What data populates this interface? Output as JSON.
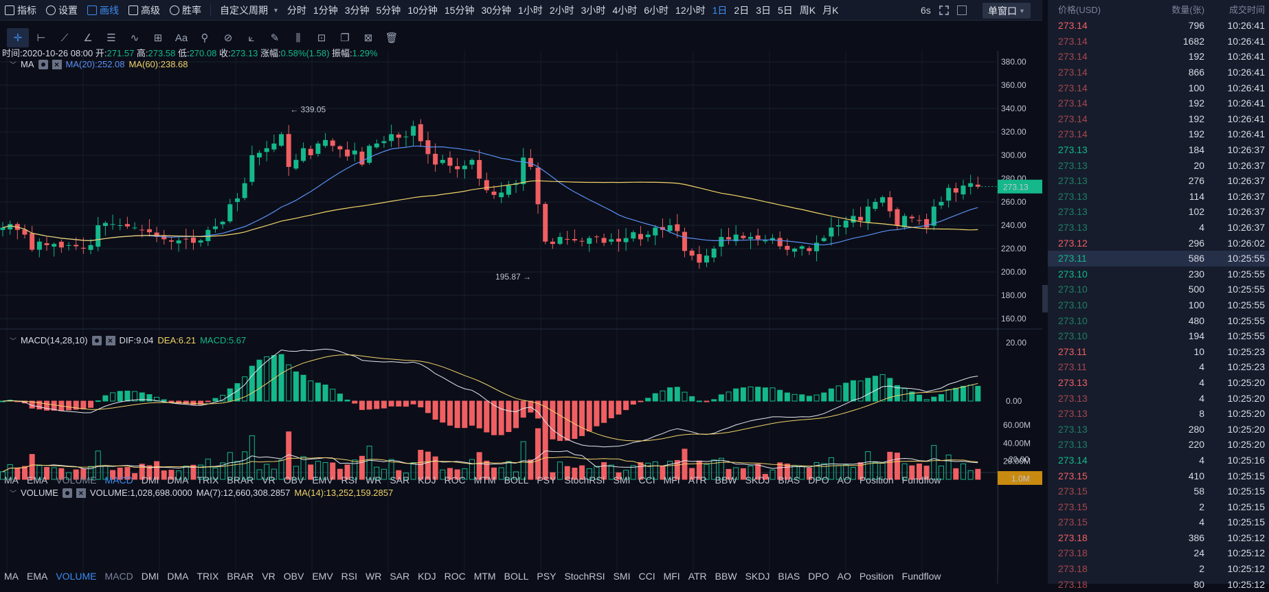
{
  "toolbar": {
    "items": [
      {
        "label": "指标",
        "icon": "indicator-icon"
      },
      {
        "label": "设置",
        "icon": "settings-icon"
      },
      {
        "label": "画线",
        "icon": "draw-line-icon",
        "active": true
      },
      {
        "label": "高级",
        "icon": "advanced-icon"
      },
      {
        "label": "胜率",
        "icon": "win-rate-icon"
      }
    ],
    "custom_period": "自定义周期",
    "periods": [
      "分时",
      "1分钟",
      "3分钟",
      "5分钟",
      "10分钟",
      "15分钟",
      "30分钟",
      "1小时",
      "2小时",
      "3小时",
      "4小时",
      "6小时",
      "12小时",
      "1日",
      "2日",
      "3日",
      "5日",
      "周K",
      "月K"
    ],
    "active_period": "1日",
    "refresh": "6s",
    "window_select": "单窗口"
  },
  "ohlc": {
    "time_label": "时间:",
    "time": "2020-10-26 08:00",
    "open_label": "开:",
    "open": "271.57",
    "high_label": "高:",
    "high": "273.58",
    "low_label": "低:",
    "low": "270.08",
    "close_label": "收:",
    "close": "273.13",
    "change_label": "涨幅:",
    "change": "0.58%(1.58)",
    "amplitude_label": "振幅:",
    "amplitude": "1.29%"
  },
  "ma": {
    "name": "MA",
    "ma20": "MA(20):252.08",
    "ma60": "MA(60):238.68"
  },
  "macd": {
    "name": "MACD(14,28,10)",
    "dif": "DIF:9.04",
    "dea": "DEA:6.21",
    "macd": "MACD:5.67"
  },
  "volume": {
    "name": "VOLUME",
    "value": "VOLUME:1,028,698.0000",
    "ma7": "MA(7):12,660,308.2857",
    "ma14": "MA(14):13,252,159.2857"
  },
  "indicator_tabs": [
    "MA",
    "EMA",
    "VOLUME",
    "MACD",
    "DMI",
    "DMA",
    "TRIX",
    "BRAR",
    "VR",
    "OBV",
    "EMV",
    "RSI",
    "WR",
    "SAR",
    "KDJ",
    "ROC",
    "MTM",
    "BOLL",
    "PSY",
    "StochRSI",
    "SMI",
    "CCI",
    "MFI",
    "ATR",
    "BBW",
    "SKDJ",
    "BIAS",
    "DPO",
    "AO",
    "Position",
    "Fundflow"
  ],
  "price_axis": [
    "380.00",
    "360.00",
    "340.00",
    "320.00",
    "300.00",
    "280.00",
    "260.00",
    "240.00",
    "220.00",
    "200.00",
    "180.00",
    "160.00"
  ],
  "macd_axis": [
    "20.00",
    "0.00",
    "-20.00"
  ],
  "volume_axis": [
    "60.00M",
    "40.00M",
    "20.00M"
  ],
  "current_price": "273.13",
  "current_volume": "1.0M",
  "high_marker": "← 339.05",
  "low_marker": "195.87 →",
  "chart_data": {
    "type": "candlestick",
    "title": "",
    "ylim": [
      160,
      380
    ],
    "annotations": [
      {
        "label": "339.05",
        "value": 339.05
      },
      {
        "label": "195.87",
        "value": 195.87
      }
    ],
    "closes": [
      238,
      241,
      236,
      232,
      219,
      226,
      223,
      224,
      221,
      223,
      222,
      220,
      223,
      240,
      242,
      241,
      240,
      239,
      238,
      236,
      234,
      230,
      228,
      226,
      227,
      228,
      225,
      227,
      236,
      239,
      243,
      258,
      263,
      276,
      300,
      302,
      306,
      310,
      318,
      290,
      296,
      306,
      300,
      310,
      313,
      308,
      305,
      299,
      304,
      292,
      308,
      310,
      312,
      318,
      315,
      316,
      325,
      312,
      301,
      292,
      296,
      291,
      288,
      291,
      296,
      280,
      270,
      266,
      268,
      274,
      276,
      298,
      290,
      258,
      226,
      224,
      230,
      228,
      227,
      226,
      229,
      230,
      225,
      228,
      226,
      229,
      234,
      228,
      232,
      238,
      236,
      240,
      235,
      218,
      214,
      208,
      214,
      220,
      230,
      228,
      232,
      229,
      230,
      228,
      227,
      229,
      222,
      219,
      220,
      222,
      218,
      225,
      229,
      238,
      240,
      244,
      248,
      244,
      256,
      260,
      264,
      252,
      240,
      248,
      246,
      244,
      238,
      256,
      260,
      272,
      268,
      274,
      276,
      273
    ]
  },
  "trades": {
    "headers": [
      "价格(USD)",
      "数量(张)",
      "成交时间"
    ],
    "rows": [
      {
        "price": "273.14",
        "qty": "796",
        "time": "10:26:41",
        "side": "sell",
        "dim": false
      },
      {
        "price": "273.14",
        "qty": "1682",
        "time": "10:26:41",
        "side": "sell",
        "dim": true
      },
      {
        "price": "273.14",
        "qty": "192",
        "time": "10:26:41",
        "side": "sell",
        "dim": true
      },
      {
        "price": "273.14",
        "qty": "866",
        "time": "10:26:41",
        "side": "sell",
        "dim": true
      },
      {
        "price": "273.14",
        "qty": "100",
        "time": "10:26:41",
        "side": "sell",
        "dim": true
      },
      {
        "price": "273.14",
        "qty": "192",
        "time": "10:26:41",
        "side": "sell",
        "dim": true
      },
      {
        "price": "273.14",
        "qty": "192",
        "time": "10:26:41",
        "side": "sell",
        "dim": true
      },
      {
        "price": "273.14",
        "qty": "192",
        "time": "10:26:41",
        "side": "sell",
        "dim": true
      },
      {
        "price": "273.13",
        "qty": "184",
        "time": "10:26:37",
        "side": "buy",
        "dim": false
      },
      {
        "price": "273.13",
        "qty": "20",
        "time": "10:26:37",
        "side": "buy",
        "dim": true
      },
      {
        "price": "273.13",
        "qty": "276",
        "time": "10:26:37",
        "side": "buy",
        "dim": true
      },
      {
        "price": "273.13",
        "qty": "114",
        "time": "10:26:37",
        "side": "buy",
        "dim": true
      },
      {
        "price": "273.13",
        "qty": "102",
        "time": "10:26:37",
        "side": "buy",
        "dim": true
      },
      {
        "price": "273.13",
        "qty": "4",
        "time": "10:26:37",
        "side": "buy",
        "dim": true
      },
      {
        "price": "273.12",
        "qty": "296",
        "time": "10:26:02",
        "side": "sell",
        "dim": false
      },
      {
        "price": "273.11",
        "qty": "586",
        "time": "10:25:55",
        "side": "buy",
        "dim": false,
        "highlight": true
      },
      {
        "price": "273.10",
        "qty": "230",
        "time": "10:25:55",
        "side": "buy",
        "dim": false
      },
      {
        "price": "273.10",
        "qty": "500",
        "time": "10:25:55",
        "side": "buy",
        "dim": true
      },
      {
        "price": "273.10",
        "qty": "100",
        "time": "10:25:55",
        "side": "buy",
        "dim": true
      },
      {
        "price": "273.10",
        "qty": "480",
        "time": "10:25:55",
        "side": "buy",
        "dim": true
      },
      {
        "price": "273.10",
        "qty": "194",
        "time": "10:25:55",
        "side": "buy",
        "dim": true
      },
      {
        "price": "273.11",
        "qty": "10",
        "time": "10:25:23",
        "side": "sell",
        "dim": false
      },
      {
        "price": "273.11",
        "qty": "4",
        "time": "10:25:23",
        "side": "sell",
        "dim": true
      },
      {
        "price": "273.13",
        "qty": "4",
        "time": "10:25:20",
        "side": "sell",
        "dim": false
      },
      {
        "price": "273.13",
        "qty": "4",
        "time": "10:25:20",
        "side": "sell",
        "dim": true
      },
      {
        "price": "273.13",
        "qty": "8",
        "time": "10:25:20",
        "side": "sell",
        "dim": true
      },
      {
        "price": "273.13",
        "qty": "280",
        "time": "10:25:20",
        "side": "buy",
        "dim": true
      },
      {
        "price": "273.13",
        "qty": "220",
        "time": "10:25:20",
        "side": "buy",
        "dim": true
      },
      {
        "price": "273.14",
        "qty": "4",
        "time": "10:25:16",
        "side": "buy",
        "dim": false
      },
      {
        "price": "273.15",
        "qty": "410",
        "time": "10:25:15",
        "side": "sell",
        "dim": false
      },
      {
        "price": "273.15",
        "qty": "58",
        "time": "10:25:15",
        "side": "sell",
        "dim": true
      },
      {
        "price": "273.15",
        "qty": "2",
        "time": "10:25:15",
        "side": "sell",
        "dim": true
      },
      {
        "price": "273.15",
        "qty": "4",
        "time": "10:25:15",
        "side": "sell",
        "dim": true
      },
      {
        "price": "273.18",
        "qty": "386",
        "time": "10:25:12",
        "side": "sell",
        "dim": false
      },
      {
        "price": "273.18",
        "qty": "24",
        "time": "10:25:12",
        "side": "sell",
        "dim": true
      },
      {
        "price": "273.18",
        "qty": "2",
        "time": "10:25:12",
        "side": "sell",
        "dim": true
      },
      {
        "price": "273.18",
        "qty": "80",
        "time": "10:25:12",
        "side": "sell",
        "dim": true
      }
    ]
  }
}
